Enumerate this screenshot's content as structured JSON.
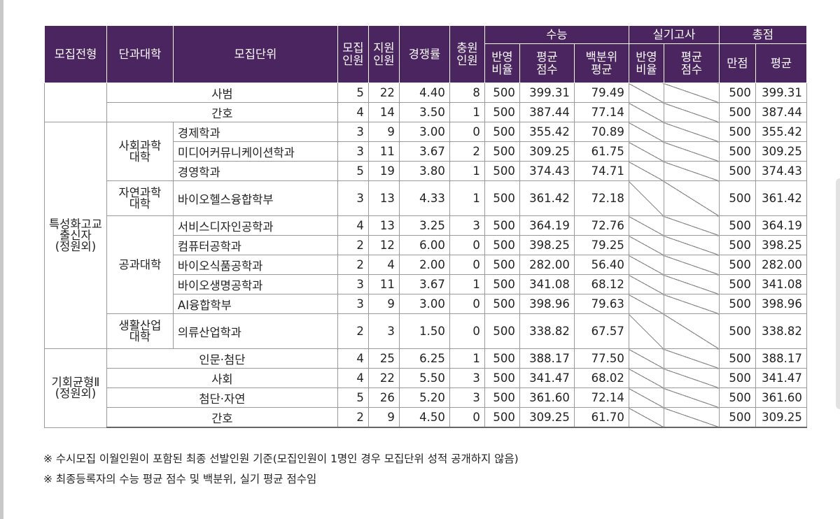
{
  "header": {
    "admission_type": "모집전형",
    "college": "단과대학",
    "unit": "모집단위",
    "quota": "모집\n인원",
    "applicants": "지원\n인원",
    "competition": "경쟁률",
    "additional": "충원\n인원",
    "csat": "수능",
    "practical": "실기고사",
    "total": "총점",
    "csat_ratio": "반영\n비율",
    "csat_avg": "평균\n점수",
    "csat_pct": "백분위\n평균",
    "prac_ratio": "반영\n비율",
    "prac_avg": "평균\n점수",
    "total_max": "만점",
    "total_avg": "평균"
  },
  "groups": {
    "special_type": "특성화고교\n출신자\n(정원외)",
    "balance_type": "기회균형Ⅱ\n(정원외)",
    "social_college": "사회과학\n대학",
    "natural_college": "자연과학\n대학",
    "eng_college": "공과대학",
    "life_college": "생활산업\n대학"
  },
  "rows": [
    {
      "unit": "사범",
      "quota": "5",
      "applicants": "22",
      "rate": "4.40",
      "extra": "8",
      "ratio": "500",
      "avg": "399.31",
      "pct": "79.49",
      "max": "500",
      "total": "399.31"
    },
    {
      "unit": "간호",
      "quota": "4",
      "applicants": "14",
      "rate": "3.50",
      "extra": "1",
      "ratio": "500",
      "avg": "387.44",
      "pct": "77.14",
      "max": "500",
      "total": "387.44"
    },
    {
      "unit": "경제학과",
      "quota": "3",
      "applicants": "9",
      "rate": "3.00",
      "extra": "0",
      "ratio": "500",
      "avg": "355.42",
      "pct": "70.89",
      "max": "500",
      "total": "355.42"
    },
    {
      "unit": "미디어커뮤니케이션학과",
      "quota": "3",
      "applicants": "11",
      "rate": "3.67",
      "extra": "2",
      "ratio": "500",
      "avg": "309.25",
      "pct": "61.75",
      "max": "500",
      "total": "309.25"
    },
    {
      "unit": "경영학과",
      "quota": "5",
      "applicants": "19",
      "rate": "3.80",
      "extra": "1",
      "ratio": "500",
      "avg": "374.43",
      "pct": "74.71",
      "max": "500",
      "total": "374.43"
    },
    {
      "unit": "바이오헬스융합학부",
      "quota": "3",
      "applicants": "13",
      "rate": "4.33",
      "extra": "1",
      "ratio": "500",
      "avg": "361.42",
      "pct": "72.18",
      "max": "500",
      "total": "361.42"
    },
    {
      "unit": "서비스디자인공학과",
      "quota": "4",
      "applicants": "13",
      "rate": "3.25",
      "extra": "3",
      "ratio": "500",
      "avg": "364.19",
      "pct": "72.76",
      "max": "500",
      "total": "364.19"
    },
    {
      "unit": "컴퓨터공학과",
      "quota": "2",
      "applicants": "12",
      "rate": "6.00",
      "extra": "0",
      "ratio": "500",
      "avg": "398.25",
      "pct": "79.25",
      "max": "500",
      "total": "398.25"
    },
    {
      "unit": "바이오식품공학과",
      "quota": "2",
      "applicants": "4",
      "rate": "2.00",
      "extra": "0",
      "ratio": "500",
      "avg": "282.00",
      "pct": "56.40",
      "max": "500",
      "total": "282.00"
    },
    {
      "unit": "바이오생명공학과",
      "quota": "3",
      "applicants": "11",
      "rate": "3.67",
      "extra": "1",
      "ratio": "500",
      "avg": "341.08",
      "pct": "68.12",
      "max": "500",
      "total": "341.08"
    },
    {
      "unit": "AI융합학부",
      "quota": "3",
      "applicants": "9",
      "rate": "3.00",
      "extra": "0",
      "ratio": "500",
      "avg": "398.96",
      "pct": "79.63",
      "max": "500",
      "total": "398.96"
    },
    {
      "unit": "의류산업학과",
      "quota": "2",
      "applicants": "3",
      "rate": "1.50",
      "extra": "0",
      "ratio": "500",
      "avg": "338.82",
      "pct": "67.57",
      "max": "500",
      "total": "338.82"
    },
    {
      "unit": "인문·첨단",
      "quota": "4",
      "applicants": "25",
      "rate": "6.25",
      "extra": "1",
      "ratio": "500",
      "avg": "388.17",
      "pct": "77.50",
      "max": "500",
      "total": "388.17"
    },
    {
      "unit": "사회",
      "quota": "4",
      "applicants": "22",
      "rate": "5.50",
      "extra": "3",
      "ratio": "500",
      "avg": "341.47",
      "pct": "68.02",
      "max": "500",
      "total": "341.47"
    },
    {
      "unit": "첨단·자연",
      "quota": "5",
      "applicants": "26",
      "rate": "5.20",
      "extra": "3",
      "ratio": "500",
      "avg": "361.60",
      "pct": "72.14",
      "max": "500",
      "total": "361.60"
    },
    {
      "unit": "간호",
      "quota": "2",
      "applicants": "9",
      "rate": "4.50",
      "extra": "0",
      "ratio": "500",
      "avg": "309.25",
      "pct": "61.70",
      "max": "500",
      "total": "309.25"
    }
  ],
  "notes": [
    "※ 수시모집 이월인원이 포함된 최종 선발인원 기준(모집인원이 1명인 경우 모집단위 성적 공개하지 않음)",
    "※ 최종등록자의 수능 평균 점수 및 백분위, 실기 평균 점수임"
  ]
}
